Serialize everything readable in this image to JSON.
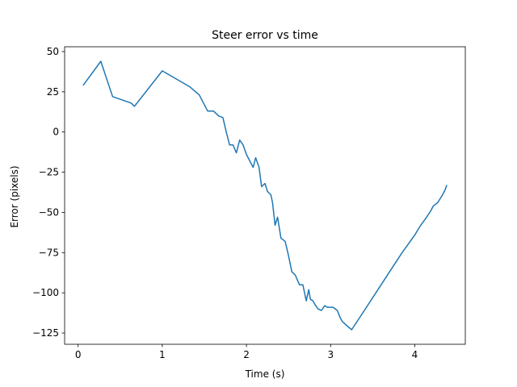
{
  "chart_data": {
    "type": "line",
    "title": "Steer error vs time",
    "xlabel": "Time (s)",
    "ylabel": "Error (pixels)",
    "xlim": [
      -0.16,
      4.6
    ],
    "ylim": [
      -132,
      53
    ],
    "xticks": [
      0,
      1,
      2,
      3,
      4
    ],
    "xtick_labels": [
      "0",
      "1",
      "2",
      "3",
      "4"
    ],
    "yticks": [
      50,
      25,
      0,
      -25,
      -50,
      -75,
      -100,
      -125
    ],
    "ytick_labels": [
      "50",
      "25",
      "0",
      "−25",
      "−50",
      "−75",
      "−100",
      "−125"
    ],
    "grid": false,
    "legend": "none",
    "line_color": "#1f77b4",
    "series": [
      {
        "x": [
          0.06,
          0.27,
          0.41,
          0.63,
          0.67,
          1.0,
          1.33,
          1.44,
          1.49,
          1.54,
          1.58,
          1.61,
          1.67,
          1.72,
          1.76,
          1.8,
          1.84,
          1.88,
          1.92,
          1.96,
          2.0,
          2.04,
          2.08,
          2.11,
          2.15,
          2.18,
          2.22,
          2.25,
          2.29,
          2.31,
          2.34,
          2.37,
          2.41,
          2.46,
          2.5,
          2.54,
          2.58,
          2.63,
          2.67,
          2.71,
          2.74,
          2.76,
          2.79,
          2.81,
          2.85,
          2.89,
          2.93,
          2.96,
          3.03,
          3.08,
          3.11,
          3.14,
          3.25,
          3.4,
          3.55,
          3.7,
          3.85,
          4.0,
          4.07,
          4.14,
          4.19,
          4.22,
          4.27,
          4.32,
          4.36,
          4.38
        ],
        "y": [
          29,
          44,
          22,
          18,
          16,
          38,
          28,
          23,
          18,
          13,
          13,
          13,
          10,
          9,
          0,
          -8,
          -8,
          -13,
          -5,
          -8,
          -14,
          -18,
          -22,
          -16,
          -22,
          -34,
          -32,
          -37,
          -39,
          -44,
          -58,
          -53,
          -66,
          -68,
          -77,
          -87,
          -89,
          -95,
          -95,
          -105,
          -98,
          -104,
          -105,
          -107,
          -110,
          -111,
          -108,
          -109,
          -109,
          -111,
          -115,
          -118,
          -123,
          -111,
          -99,
          -87,
          -75,
          -64,
          -58,
          -53,
          -49,
          -46,
          -44,
          -40,
          -36,
          -33
        ]
      }
    ]
  }
}
